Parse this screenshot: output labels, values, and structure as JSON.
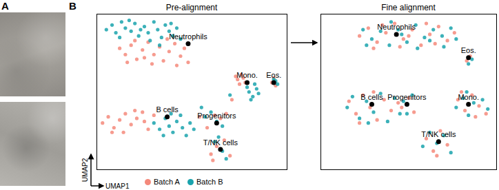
{
  "panel_labels": [
    "A",
    "B"
  ],
  "chart_data": [
    {
      "type": "scatter",
      "title": "Pre-alignment",
      "x_label": "UMAP1",
      "y_label": "UMAP2",
      "xlim": [
        0,
        100
      ],
      "ylim": [
        0,
        100
      ],
      "tick_labels": false,
      "legend": "bottom",
      "clusters": [
        {
          "label": "Neutrophils",
          "x": 48,
          "y": 81
        },
        {
          "label": "Mono.",
          "x": 79,
          "y": 56
        },
        {
          "label": "Eos.",
          "x": 93,
          "y": 56
        },
        {
          "label": "B cells",
          "x": 37,
          "y": 34
        },
        {
          "label": "Progenitors",
          "x": 63,
          "y": 30
        },
        {
          "label": "T/NK cells",
          "x": 65,
          "y": 13
        }
      ],
      "series": [
        {
          "name": "Batch A",
          "color": "#f4897b",
          "points": [
            [
              12,
              78
            ],
            [
              15,
              74
            ],
            [
              18,
              80
            ],
            [
              21,
              71
            ],
            [
              24,
              77
            ],
            [
              27,
              82
            ],
            [
              30,
              74
            ],
            [
              33,
              79
            ],
            [
              35,
              70
            ],
            [
              38,
              76
            ],
            [
              41,
              81
            ],
            [
              44,
              73
            ],
            [
              46,
              78
            ],
            [
              48,
              69
            ],
            [
              20,
              83
            ],
            [
              29,
              68
            ],
            [
              37,
              84
            ],
            [
              42,
              67
            ],
            [
              25,
              72
            ],
            [
              16,
              69
            ],
            [
              74,
              58
            ],
            [
              76,
              61
            ],
            [
              75,
              55
            ],
            [
              77,
              59
            ],
            [
              78,
              56
            ],
            [
              73,
              60
            ],
            [
              92,
              56
            ],
            [
              94,
              54
            ],
            [
              93,
              59
            ],
            [
              3,
              30
            ],
            [
              6,
              34
            ],
            [
              9,
              27
            ],
            [
              12,
              32
            ],
            [
              15,
              36
            ],
            [
              18,
              29
            ],
            [
              21,
              33
            ],
            [
              24,
              37
            ],
            [
              27,
              26
            ],
            [
              30,
              35
            ],
            [
              8,
              24
            ],
            [
              14,
              24
            ],
            [
              20,
              38
            ],
            [
              25,
              31
            ],
            [
              58,
              27
            ],
            [
              62,
              35
            ],
            [
              65,
              33
            ],
            [
              68,
              36
            ],
            [
              60,
              10
            ],
            [
              63,
              15
            ],
            [
              67,
              19
            ],
            [
              70,
              9
            ],
            [
              61,
              6
            ],
            [
              54,
              34
            ],
            [
              71,
              45
            ]
          ]
        },
        {
          "name": "Batch B",
          "color": "#1aa3ad",
          "points": [
            [
              5,
              90
            ],
            [
              8,
              93
            ],
            [
              10,
              88
            ],
            [
              13,
              95
            ],
            [
              15,
              91
            ],
            [
              18,
              89
            ],
            [
              20,
              94
            ],
            [
              22,
              86
            ],
            [
              25,
              92
            ],
            [
              27,
              88
            ],
            [
              30,
              95
            ],
            [
              32,
              90
            ],
            [
              34,
              85
            ],
            [
              36,
              93
            ],
            [
              38,
              89
            ],
            [
              40,
              86
            ],
            [
              42,
              91
            ],
            [
              44,
              84
            ],
            [
              12,
              85
            ],
            [
              28,
              83
            ],
            [
              17,
              96
            ],
            [
              33,
              80
            ],
            [
              23,
              90
            ],
            [
              39,
              94
            ],
            [
              80,
              50
            ],
            [
              82,
              47
            ],
            [
              84,
              52
            ],
            [
              81,
              45
            ],
            [
              83,
              55
            ],
            [
              85,
              49
            ],
            [
              79,
              53
            ],
            [
              93,
              58
            ],
            [
              95,
              55
            ],
            [
              94,
              57
            ],
            [
              30,
              30
            ],
            [
              33,
              26
            ],
            [
              36,
              33
            ],
            [
              38,
              28
            ],
            [
              40,
              24
            ],
            [
              42,
              31
            ],
            [
              45,
              27
            ],
            [
              47,
              22
            ],
            [
              49,
              30
            ],
            [
              51,
              26
            ],
            [
              35,
              22
            ],
            [
              44,
              35
            ],
            [
              39,
              36
            ],
            [
              57,
              34
            ],
            [
              60,
              37
            ],
            [
              63,
              31
            ],
            [
              66,
              28
            ],
            [
              62,
              18
            ],
            [
              66,
              12
            ],
            [
              68,
              7
            ],
            [
              64,
              21
            ],
            [
              55,
              40
            ],
            [
              70,
              48
            ]
          ]
        }
      ]
    },
    {
      "type": "scatter",
      "title": "Fine alignment",
      "xlim": [
        0,
        100
      ],
      "ylim": [
        0,
        100
      ],
      "tick_labels": false,
      "clusters": [
        {
          "label": "Neutrophils",
          "x": 43,
          "y": 87
        },
        {
          "label": "Eos.",
          "x": 84,
          "y": 72
        },
        {
          "label": "Mono.",
          "x": 84,
          "y": 42
        },
        {
          "label": "B cells",
          "x": 29,
          "y": 42
        },
        {
          "label": "Progenitors",
          "x": 49,
          "y": 42
        },
        {
          "label": "T/NK cells",
          "x": 67,
          "y": 18
        }
      ],
      "series": [
        {
          "name": "Batch A",
          "color": "#f4897b",
          "points": [
            [
              22,
              86
            ],
            [
              27,
              91
            ],
            [
              32,
              82
            ],
            [
              37,
              88
            ],
            [
              42,
              94
            ],
            [
              47,
              84
            ],
            [
              52,
              90
            ],
            [
              57,
              80
            ],
            [
              62,
              87
            ],
            [
              67,
              92
            ],
            [
              72,
              83
            ],
            [
              76,
              88
            ],
            [
              30,
              78
            ],
            [
              45,
              79
            ],
            [
              60,
              94
            ],
            [
              50,
              86
            ],
            [
              35,
              93
            ],
            [
              65,
              81
            ],
            [
              83,
              70
            ],
            [
              85,
              73
            ],
            [
              78,
              45
            ],
            [
              82,
              38
            ],
            [
              86,
              48
            ],
            [
              90,
              41
            ],
            [
              94,
              36
            ],
            [
              80,
              50
            ],
            [
              88,
              34
            ],
            [
              16,
              44
            ],
            [
              20,
              36
            ],
            [
              24,
              48
            ],
            [
              28,
              40
            ],
            [
              32,
              32
            ],
            [
              36,
              45
            ],
            [
              40,
              38
            ],
            [
              44,
              43
            ],
            [
              22,
              30
            ],
            [
              30,
              50
            ],
            [
              46,
              40
            ],
            [
              50,
              46
            ],
            [
              53,
              37
            ],
            [
              60,
              20
            ],
            [
              64,
              12
            ],
            [
              68,
              25
            ],
            [
              72,
              16
            ],
            [
              66,
              9
            ]
          ]
        },
        {
          "name": "Batch B",
          "color": "#1aa3ad",
          "points": [
            [
              24,
              90
            ],
            [
              29,
              84
            ],
            [
              34,
              89
            ],
            [
              39,
              80
            ],
            [
              44,
              90
            ],
            [
              49,
              82
            ],
            [
              54,
              93
            ],
            [
              59,
              85
            ],
            [
              64,
              90
            ],
            [
              69,
              86
            ],
            [
              74,
              91
            ],
            [
              77,
              84
            ],
            [
              26,
              80
            ],
            [
              40,
              95
            ],
            [
              55,
              78
            ],
            [
              70,
              79
            ],
            [
              46,
              87
            ],
            [
              62,
              83
            ],
            [
              84,
              68
            ],
            [
              86,
              71
            ],
            [
              77,
              40
            ],
            [
              81,
              46
            ],
            [
              84,
              35
            ],
            [
              87,
              43
            ],
            [
              92,
              45
            ],
            [
              95,
              39
            ],
            [
              83,
              50
            ],
            [
              15,
              40
            ],
            [
              18,
              47
            ],
            [
              22,
              33
            ],
            [
              26,
              44
            ],
            [
              30,
              37
            ],
            [
              34,
              49
            ],
            [
              38,
              31
            ],
            [
              42,
              46
            ],
            [
              45,
              36
            ],
            [
              27,
              30
            ],
            [
              47,
              44
            ],
            [
              49,
              36
            ],
            [
              52,
              48
            ],
            [
              58,
              15
            ],
            [
              62,
              24
            ],
            [
              66,
              17
            ],
            [
              70,
              22
            ],
            [
              74,
              11
            ]
          ]
        }
      ]
    }
  ]
}
